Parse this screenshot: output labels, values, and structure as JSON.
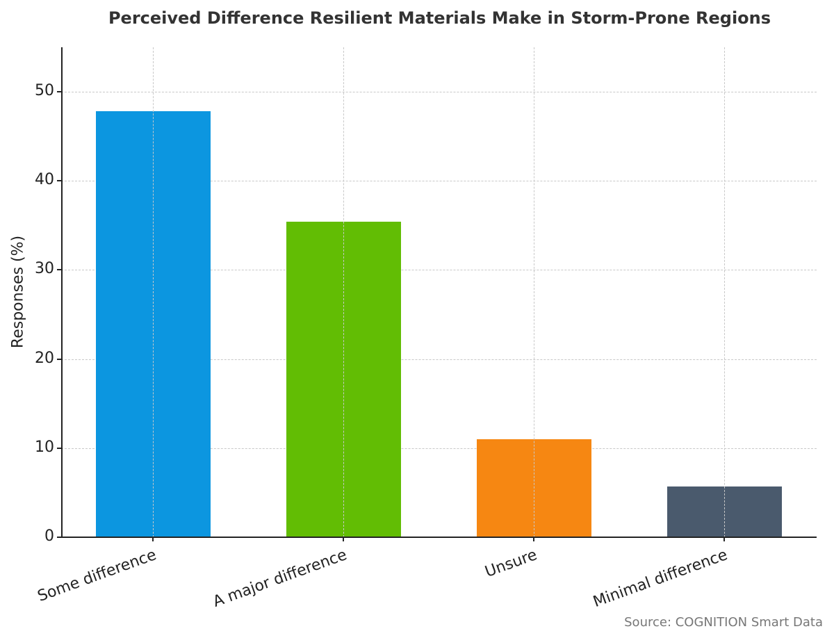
{
  "chart_data": {
    "type": "bar",
    "title": "Perceived Difference Resilient Materials Make in Storm-Prone Regions",
    "xlabel": "",
    "ylabel": "Responses (%)",
    "categories": [
      "Some difference",
      "A major difference",
      "Unsure",
      "Minimal difference"
    ],
    "values": [
      47.8,
      35.4,
      11.0,
      5.7
    ],
    "colors": [
      "#0c96e0",
      "#62bd04",
      "#f68712",
      "#4a5a6d"
    ],
    "ylim": [
      0,
      55
    ],
    "yticks": [
      0,
      10,
      20,
      30,
      40,
      50
    ],
    "grid": true,
    "legend": null,
    "source": "Source: COGNITION Smart Data"
  }
}
